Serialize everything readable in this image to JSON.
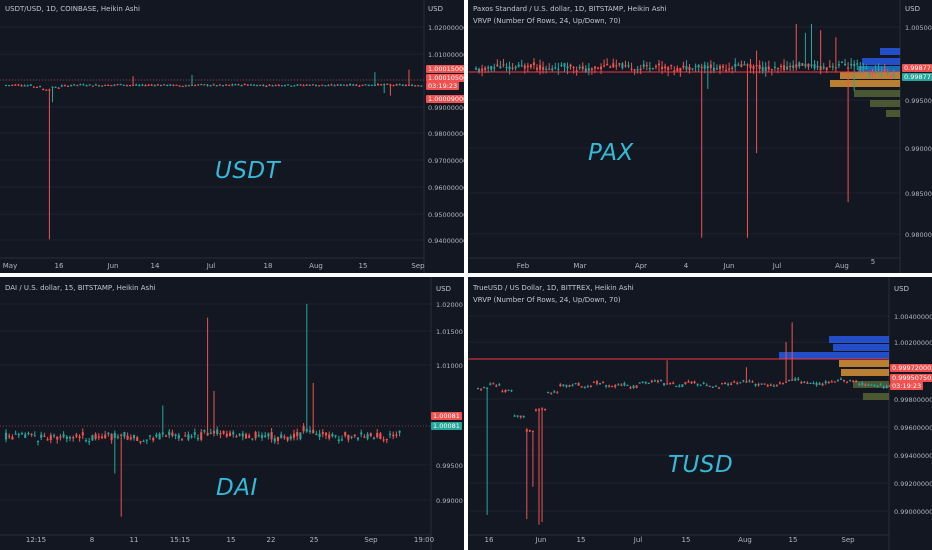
{
  "panels": [
    {
      "id": "usdt",
      "header": [
        "USDT/USD, 1D, COINBASE, Heikin Ashi"
      ],
      "big_label": "USDT",
      "axis_unit": "USD",
      "y_ticks": [
        "1.02000000",
        "1.01000000",
        "1.00015000",
        "0.99000000",
        "0.98000000",
        "0.97000000",
        "0.96000000",
        "0.95000000",
        "0.94000000"
      ],
      "x_ticks": [
        "May",
        "16",
        "Jun",
        "14",
        "Jul",
        "18",
        "Aug",
        "15",
        "Sep"
      ],
      "tags": [
        {
          "text": "1.00015000",
          "color": "red"
        },
        {
          "text": "1.00010500",
          "color": "red"
        },
        {
          "text": "03:19:23",
          "color": "red"
        },
        {
          "text": "1.00009000",
          "color": "red"
        }
      ]
    },
    {
      "id": "pax",
      "header": [
        "Paxos Standard / U.S. dollar, 1D, BITSTAMP, Heikin Ashi",
        "VRVP (Number Of Rows, 24, Up/Down, 70)"
      ],
      "big_label": "PAX",
      "axis_unit": "USD",
      "y_ticks": [
        "1.00500",
        "0.99500",
        "0.99000",
        "0.98500",
        "0.98000"
      ],
      "x_ticks": [
        "Feb",
        "Mar",
        "Apr",
        "4",
        "Jun",
        "Jul",
        "Aug",
        "5"
      ],
      "tags": [
        {
          "text": "0.99877",
          "color": "red"
        },
        {
          "text": "0.99877",
          "color": "teal"
        }
      ]
    },
    {
      "id": "dai",
      "header": [
        "DAI / U.S. dollar, 15, BITSTAMP, Heikin Ashi"
      ],
      "big_label": "DAI",
      "axis_unit": "USD",
      "y_ticks": [
        "1.02000",
        "1.01500",
        "1.01000",
        "0.99500",
        "0.99000"
      ],
      "x_ticks": [
        "12:15",
        "8",
        "11",
        "15:15",
        "15",
        "22",
        "25",
        "Sep",
        "19:00"
      ],
      "tags": [
        {
          "text": "1.00081",
          "color": "red"
        },
        {
          "text": "1.00081",
          "color": "teal"
        }
      ]
    },
    {
      "id": "tusd",
      "header": [
        "TrueUSD / US Dollar, 1D, BITTREX, Heikin Ashi",
        "VRVP (Number Of Rows, 24, Up/Down, 70)"
      ],
      "big_label": "TUSD",
      "axis_unit": "USD",
      "y_ticks": [
        "1.00400000",
        "1.00200000",
        "0.99800000",
        "0.99600000",
        "0.99400000",
        "0.99200000",
        "0.99000000"
      ],
      "x_ticks": [
        "16",
        "Jun",
        "15",
        "Jul",
        "15",
        "Aug",
        "15",
        "Sep"
      ],
      "tags": [
        {
          "text": "0.99972000",
          "color": "red"
        },
        {
          "text": "0.99950750",
          "color": "red"
        },
        {
          "text": "03:19:23",
          "color": "red"
        }
      ]
    }
  ],
  "chart_data": [
    {
      "type": "candlestick",
      "title": "USDT/USD, 1D, COINBASE, Heikin Ashi",
      "ylabel": "USD",
      "ylim": [
        0.935,
        1.025
      ],
      "values": [
        1.0001,
        1.0002,
        1.0,
        0.9995,
        0.9985,
        0.9992,
        0.9998,
        1.0001,
        1.0002,
        1.0001,
        1.0,
        1.0001,
        1.0003,
        1.0001,
        1.0,
        1.0001,
        1.0002,
        1.0001,
        1.0,
        0.9999,
        1.0001,
        1.0002,
        1.0001,
        1.0,
        1.0001,
        1.0002,
        1.0003,
        1.0001,
        1.0,
        1.0001,
        1.0002,
        1.0001,
        1.0001,
        1.0002,
        1.0001,
        1.0,
        1.0001,
        1.0002,
        1.0001,
        1.0001,
        1.0002,
        1.0003,
        1.0002,
        1.0001,
        1.0,
        1.0001
      ],
      "spikes": [
        {
          "index": 4,
          "low": 0.941,
          "high": 1.0002
        }
      ]
    },
    {
      "type": "candlestick",
      "title": "Paxos Standard / U.S. dollar, 1D, BITSTAMP, Heikin Ashi",
      "ylabel": "USD",
      "ylim": [
        0.978,
        1.0055
      ],
      "last": 0.99877,
      "values": [
        0.9993,
        0.9996,
        0.9998,
        0.9995,
        0.9997,
        0.9999,
        0.9996,
        0.9994,
        0.9997,
        0.9998,
        0.9995,
        0.9993,
        0.9996,
        0.9999,
        0.9998,
        0.9996,
        0.9995,
        0.9997,
        0.9998,
        0.9996,
        0.9994,
        0.9996,
        0.9998,
        0.9997,
        0.9995,
        0.9996,
        0.9998,
        0.9999,
        0.9997,
        0.9995,
        0.9994,
        0.9996,
        0.9998,
        0.9999,
        0.9997,
        0.9996,
        0.9998,
        1.0,
        0.9998,
        0.9995,
        0.999,
        0.9993,
        0.9988
      ]
    },
    {
      "type": "candlestick",
      "title": "DAI / U.S. dollar, 15, BITSTAMP, Heikin Ashi",
      "ylabel": "USD",
      "ylim": [
        0.987,
        1.0205
      ],
      "last": 1.00081,
      "values": [
        1.0002,
        1.0001,
        1.0003,
        1.0,
        0.9999,
        1.0001,
        1.0003,
        1.0002,
        1.0,
        1.0001,
        1.0002,
        1.0004,
        1.0001,
        0.9998,
        1.0001,
        1.0003,
        1.0005,
        1.0002,
        1.0,
        1.0003,
        1.0006,
        1.0009,
        1.0004,
        1.0001,
        1.0002,
        1.0005,
        1.0003,
        1.0,
        1.0001,
        1.0004,
        1.0012,
        1.0006,
        1.0002,
        1.0001,
        1.0003,
        1.0002,
        1.0001,
        1.0004,
        1.0002,
        1.0008
      ]
    },
    {
      "type": "candlestick",
      "title": "TrueUSD / US Dollar, 1D, BITTREX, Heikin Ashi",
      "ylabel": "USD",
      "ylim": [
        0.9895,
        1.0055
      ],
      "last": 0.9995075,
      "values": [
        0.9995,
        0.9998,
        0.9993,
        0.9975,
        0.9965,
        0.998,
        0.9992,
        0.9997,
        0.9998,
        0.9996,
        0.9999,
        0.9997,
        0.9998,
        0.9996,
        0.9999,
        1.0,
        0.9998,
        0.9997,
        0.9999,
        0.9998,
        0.9996,
        0.9998,
        0.9999,
        1.0,
        0.9998,
        0.9997,
        0.9999,
        1.0001,
        0.9999,
        0.9998,
        0.9999,
        1.0001,
        1.0,
        0.9998,
        0.9997,
        0.9996
      ]
    }
  ]
}
